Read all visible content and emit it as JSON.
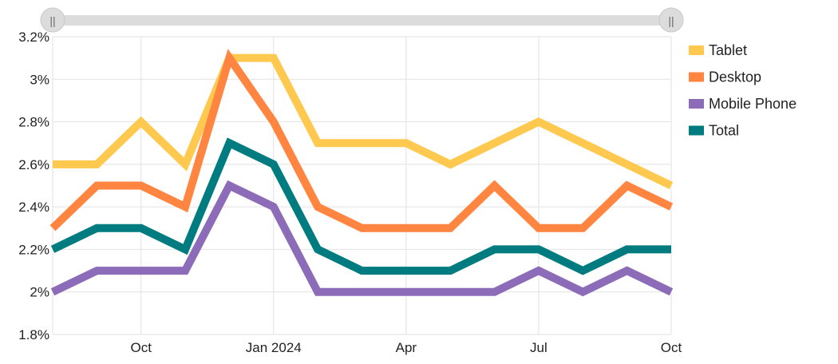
{
  "chart_data": {
    "type": "line",
    "x": [
      "2023-08",
      "2023-09",
      "2023-10",
      "2023-11",
      "2023-12",
      "2024-01",
      "2024-02",
      "2024-03",
      "2024-04",
      "2024-05",
      "2024-06",
      "2024-07",
      "2024-08",
      "2024-09",
      "2024-10"
    ],
    "series": [
      {
        "name": "Tablet",
        "color": "#FFC94F",
        "values": [
          2.6,
          2.6,
          2.8,
          2.6,
          3.1,
          3.1,
          2.7,
          2.7,
          2.7,
          2.6,
          2.7,
          2.8,
          2.7,
          2.6,
          2.5
        ]
      },
      {
        "name": "Desktop",
        "color": "#FF8540",
        "values": [
          2.3,
          2.5,
          2.5,
          2.4,
          3.1,
          2.8,
          2.4,
          2.3,
          2.3,
          2.3,
          2.5,
          2.3,
          2.3,
          2.5,
          2.4
        ]
      },
      {
        "name": "Mobile Phone",
        "color": "#8C6BB8",
        "values": [
          2.0,
          2.1,
          2.1,
          2.1,
          2.5,
          2.4,
          2.0,
          2.0,
          2.0,
          2.0,
          2.0,
          2.1,
          2.0,
          2.1,
          2.0
        ]
      },
      {
        "name": "Total",
        "color": "#007C80",
        "values": [
          2.2,
          2.3,
          2.3,
          2.2,
          2.7,
          2.6,
          2.2,
          2.1,
          2.1,
          2.1,
          2.2,
          2.2,
          2.1,
          2.2,
          2.2
        ]
      }
    ],
    "y_ticks": [
      "1.8%",
      "2%",
      "2.2%",
      "2.4%",
      "2.6%",
      "2.8%",
      "3%",
      "3.2%"
    ],
    "y_tick_values": [
      1.8,
      2.0,
      2.2,
      2.4,
      2.6,
      2.8,
      3.0,
      3.2
    ],
    "x_ticks": [
      {
        "label": "Oct",
        "x": "2023-10"
      },
      {
        "label": "Jan 2024",
        "x": "2024-01"
      },
      {
        "label": "Apr",
        "x": "2024-04"
      },
      {
        "label": "Jul",
        "x": "2024-07"
      },
      {
        "label": "Oct",
        "x": "2024-10"
      }
    ],
    "ylim": [
      1.8,
      3.2
    ],
    "grid": true,
    "legend_position": "right"
  },
  "range_slider": {
    "left_handle_icon": "grip-icon",
    "right_handle_icon": "grip-icon",
    "handle_glyph": "||"
  }
}
